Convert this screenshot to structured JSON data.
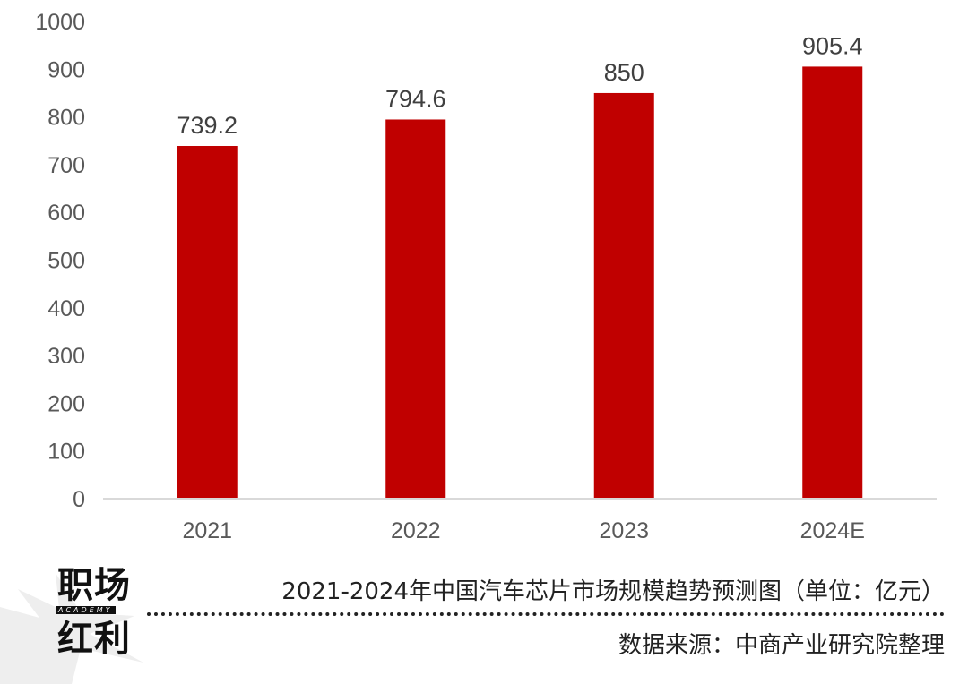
{
  "chart_data": {
    "type": "bar",
    "categories": [
      "2021",
      "2022",
      "2023",
      "2024E"
    ],
    "values": [
      739.2,
      794.6,
      850,
      905.4
    ],
    "value_labels": [
      "739.2",
      "794.6",
      "850",
      "905.4"
    ],
    "y_ticks": [
      "0",
      "100",
      "200",
      "300",
      "400",
      "500",
      "600",
      "700",
      "800",
      "900",
      "1000"
    ],
    "ylim": [
      0,
      1000
    ],
    "bar_color": "#C00000",
    "grid": false,
    "legend": "none"
  },
  "footer": {
    "logo_line1": "职场",
    "logo_sub": "ACADEMY",
    "logo_line2": "红利",
    "caption": "2021-2024年中国汽车芯片市场规模趋势预测图（单位：亿元）",
    "source": "数据来源：中商产业研究院整理"
  }
}
